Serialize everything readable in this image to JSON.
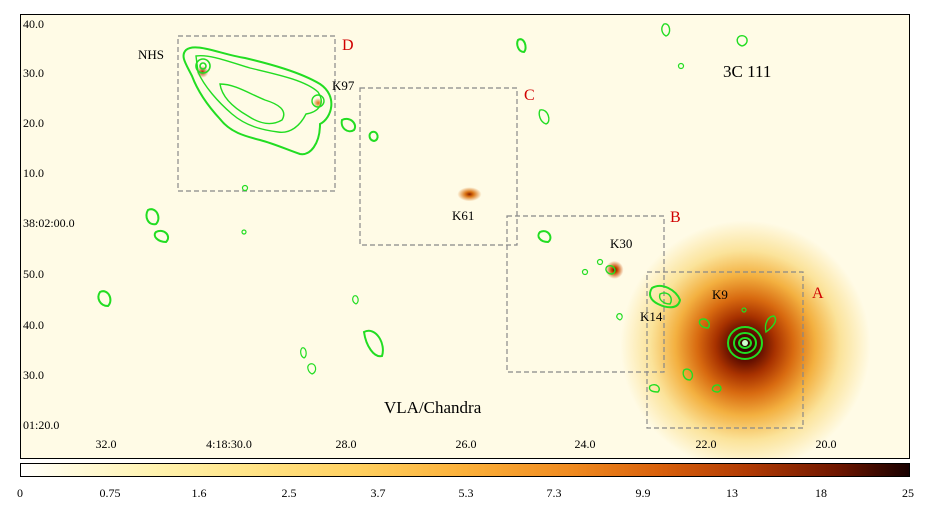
{
  "title": "3C 111",
  "caption": "VLA/Chandra",
  "labels": {
    "nhs": "NHS",
    "k97": "K97",
    "k61": "K61",
    "k30": "K30",
    "k14": "K14",
    "k9": "K9"
  },
  "regions": {
    "a": "A",
    "b": "B",
    "c": "C",
    "d": "D"
  },
  "dec_ticks": [
    "40.0",
    "30.0",
    "20.0",
    "10.0",
    "38:02:00.0",
    "50.0",
    "40.0",
    "30.0",
    "01:20.0"
  ],
  "ra_ticks": [
    "32.0",
    "4:18:30.0",
    "28.0",
    "26.0",
    "24.0",
    "22.0",
    "20.0"
  ],
  "colorbar_ticks": [
    "0",
    "0.75",
    "1.6",
    "2.5",
    "3.7",
    "5.3",
    "7.3",
    "9.9",
    "13",
    "18",
    "25"
  ],
  "colors": {
    "contour": "#22dd22",
    "region_letter": "#d00000",
    "box_dash": "#888888"
  }
}
